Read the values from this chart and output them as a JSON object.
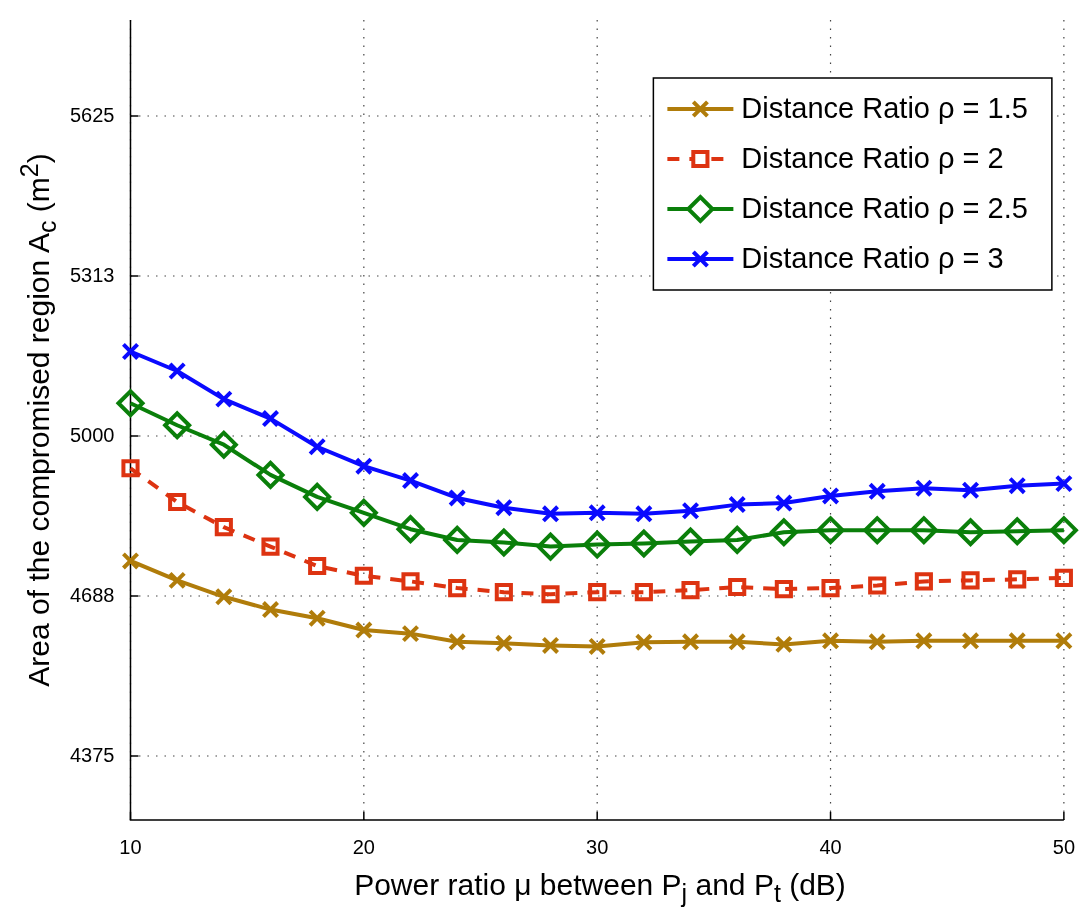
{
  "chart_data": {
    "type": "line",
    "xlabel": "Power ratio μ between P$_{j}$ and P$_{t}$ (dB)",
    "ylabel": "Area of the compromised region A$_{c}$ (m$^{2}$)",
    "x": [
      10,
      12,
      14,
      16,
      18,
      20,
      22,
      24,
      26,
      28,
      30,
      32,
      34,
      36,
      38,
      40,
      42,
      44,
      46,
      48,
      50
    ],
    "xlim": [
      10,
      50
    ],
    "xticks": [
      10,
      20,
      30,
      40,
      50
    ],
    "ylim": [
      4250,
      5812.5
    ],
    "yticks": [
      {
        "value": 4375,
        "label": "4375"
      },
      {
        "value": 4687.5,
        "label": "4688"
      },
      {
        "value": 5000,
        "label": "5000"
      },
      {
        "value": 5312.5,
        "label": "5313"
      },
      {
        "value": 5625,
        "label": "5625"
      }
    ],
    "grid": true,
    "legend": "top right",
    "series": [
      {
        "name": "Distance Ratio ρ = 1.5",
        "color": "#b07c0a",
        "marker": "cross",
        "line_style": "solid",
        "values": [
          4756,
          4718,
          4686,
          4661,
          4644,
          4621,
          4614,
          4598,
          4595,
          4591,
          4589,
          4597,
          4598,
          4598,
          4593,
          4600,
          4598,
          4600,
          4600,
          4600,
          4600
        ]
      },
      {
        "name": "Distance Ratio ρ = 2",
        "color": "#dd3311",
        "marker": "square",
        "line_style": "dashed",
        "values": [
          4937,
          4871,
          4822,
          4784,
          4746,
          4727,
          4716,
          4703,
          4695,
          4691,
          4695,
          4695,
          4699,
          4705,
          4701,
          4703,
          4708,
          4716,
          4718,
          4720,
          4723
        ]
      },
      {
        "name": "Distance Ratio ρ = 2.5",
        "color": "#0a7f0a",
        "marker": "diamond",
        "line_style": "solid",
        "values": [
          5064,
          5021,
          4983,
          4924,
          4881,
          4850,
          4818,
          4797,
          4792,
          4784,
          4788,
          4790,
          4794,
          4797,
          4812,
          4816,
          4816,
          4816,
          4812,
          4814,
          4816
        ]
      },
      {
        "name": "Distance Ratio ρ = 3",
        "color": "#0a0aff",
        "marker": "cross",
        "line_style": "solid",
        "values": [
          5165,
          5127,
          5072,
          5034,
          4979,
          4941,
          4913,
          4879,
          4860,
          4848,
          4850,
          4848,
          4854,
          4866,
          4869,
          4883,
          4892,
          4898,
          4894,
          4903,
          4907
        ]
      }
    ]
  }
}
